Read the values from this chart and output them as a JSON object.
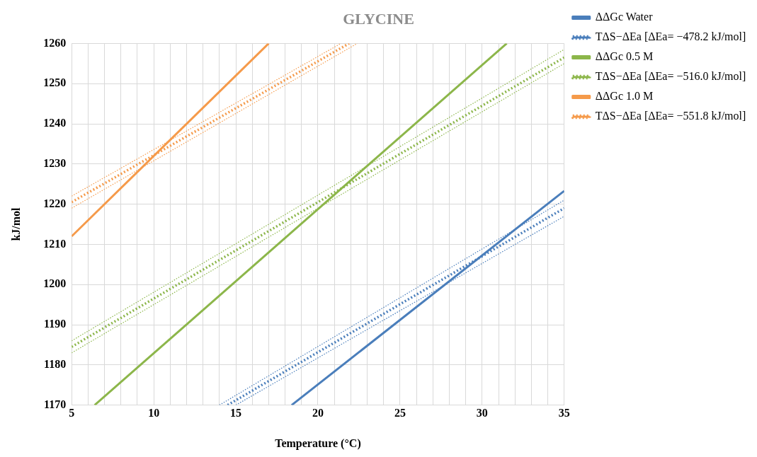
{
  "chart_data": {
    "type": "line",
    "title": "GLYCINE",
    "xlabel": "Temperature (°C)",
    "ylabel": "kJ/mol",
    "xlim": [
      5,
      35
    ],
    "ylim": [
      1170,
      1260
    ],
    "xticks": [
      5,
      {
        "value": 6,
        "label": null
      },
      {
        "value": 7,
        "label": null
      },
      {
        "value": 8,
        "label": null
      },
      {
        "value": 9,
        "label": null
      },
      10,
      {
        "value": 11,
        "label": null
      },
      {
        "value": 12,
        "label": null
      },
      {
        "value": 13,
        "label": null
      },
      {
        "value": 14,
        "label": null
      },
      15,
      {
        "value": 16,
        "label": null
      },
      {
        "value": 17,
        "label": null
      },
      {
        "value": 18,
        "label": null
      },
      {
        "value": 19,
        "label": null
      },
      20,
      {
        "value": 21,
        "label": null
      },
      {
        "value": 22,
        "label": null
      },
      {
        "value": 23,
        "label": null
      },
      {
        "value": 24,
        "label": null
      },
      25,
      {
        "value": 26,
        "label": null
      },
      {
        "value": 27,
        "label": null
      },
      {
        "value": 28,
        "label": null
      },
      {
        "value": 29,
        "label": null
      },
      30,
      {
        "value": 31,
        "label": null
      },
      {
        "value": 32,
        "label": null
      },
      {
        "value": 33,
        "label": null
      },
      {
        "value": 34,
        "label": null
      },
      35
    ],
    "yticks": [
      1170,
      1180,
      1190,
      1200,
      1210,
      1220,
      1230,
      1240,
      1250,
      1260
    ],
    "grid": true,
    "legend": "right",
    "marker": "none",
    "series": [
      {
        "name": "ΔΔGc Water",
        "color": "#4a7ebb",
        "line_style": "solid",
        "x": [
          18.4,
          35
        ],
        "values": [
          1170,
          1223.3
        ]
      },
      {
        "name": "TΔS−ΔEa [ΔEa= −478.2 kJ/mol]",
        "color": "#4a7ebb",
        "line_style": "dotted",
        "x": [
          14.5,
          35
        ],
        "values": [
          1170,
          1219
        ]
      },
      {
        "color": "#4a7ebb",
        "line_style": "dotted",
        "x": [
          14,
          35
        ],
        "values": [
          1170,
          1221
        ]
      },
      {
        "color": "#4a7ebb",
        "line_style": "dotted",
        "x": [
          15,
          35
        ],
        "values": [
          1170,
          1217
        ]
      },
      {
        "name": "ΔΔGc 0.5 M",
        "color": "#8cb64a",
        "line_style": "solid",
        "x": [
          6.4,
          31.5
        ],
        "values": [
          1170,
          1260
        ]
      },
      {
        "name": "TΔS−ΔEa [ΔEa= −516.0 kJ/mol]",
        "color": "#8cb64a",
        "line_style": "dotted",
        "x": [
          5,
          35
        ],
        "values": [
          1184.5,
          1256.5
        ]
      },
      {
        "color": "#8cb64a",
        "line_style": "dotted",
        "x": [
          5,
          35
        ],
        "values": [
          1186,
          1258.5
        ]
      },
      {
        "color": "#8cb64a",
        "line_style": "dotted",
        "x": [
          5,
          35
        ],
        "values": [
          1183,
          1255
        ]
      },
      {
        "name": "ΔΔGc 1.0 M",
        "color": "#f59a4a",
        "line_style": "solid",
        "x": [
          5,
          17
        ],
        "values": [
          1212,
          1260
        ]
      },
      {
        "name": "TΔS−ΔEa [ΔEa= −551.8 kJ/mol]",
        "color": "#f59a4a",
        "line_style": "dotted",
        "x": [
          5,
          21.9
        ],
        "values": [
          1220.5,
          1260
        ]
      },
      {
        "color": "#f59a4a",
        "line_style": "dotted",
        "x": [
          5,
          21.4
        ],
        "values": [
          1222,
          1260
        ]
      },
      {
        "color": "#f59a4a",
        "line_style": "dotted",
        "x": [
          5,
          22.4
        ],
        "values": [
          1219,
          1260
        ]
      }
    ]
  }
}
